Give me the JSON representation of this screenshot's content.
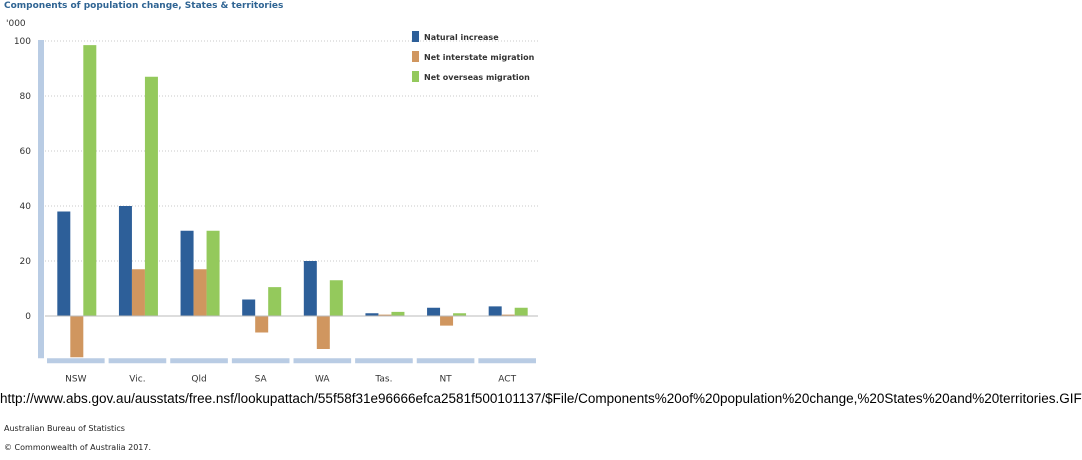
{
  "chart_data": {
    "type": "bar",
    "title": "Components of population change, States & territories",
    "ylabel": "'000",
    "ylim": [
      -15,
      100
    ],
    "yticks": [
      0,
      20,
      40,
      60,
      80,
      100
    ],
    "categories": [
      "NSW",
      "Vic.",
      "Qld",
      "SA",
      "WA",
      "Tas.",
      "NT",
      "ACT"
    ],
    "series": [
      {
        "name": "Natural increase",
        "color": "#2d5f99",
        "values": [
          38,
          40,
          31,
          6,
          20,
          1,
          3,
          3.5
        ]
      },
      {
        "name": "Net interstate migration",
        "color": "#d0965f",
        "values": [
          -15,
          17,
          17,
          -6,
          -12,
          0.5,
          -3.5,
          0.5
        ]
      },
      {
        "name": "Net overseas migration",
        "color": "#94c95c",
        "values": [
          98.5,
          87,
          31,
          10.5,
          13,
          1.5,
          1,
          3
        ]
      }
    ],
    "legend_position": "top-right",
    "grid": true
  },
  "url_text": "http://www.abs.gov.au/ausstats/free.nsf/lookupattach/55f58f31e96666efca2581f500101137/$File/Components%20of%20population%20change,%20States%20and%20territories.GIF",
  "source": "Australian Bureau of Statistics",
  "copyright": "© Commonwealth of Australia 2017."
}
